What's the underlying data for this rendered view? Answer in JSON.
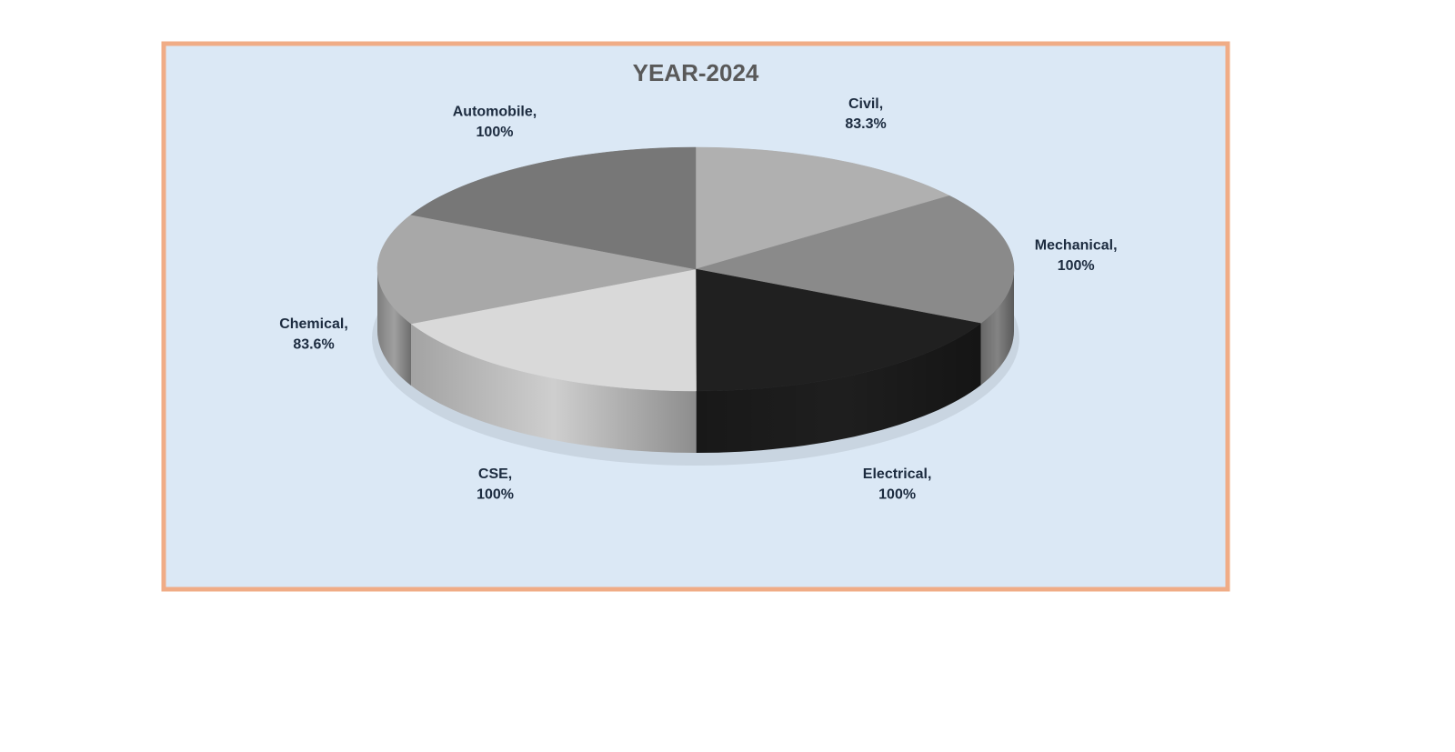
{
  "chart_data": {
    "type": "pie3d",
    "title": "YEAR-2024",
    "categories": [
      "Civil",
      "Mechanical",
      "Electrical",
      "CSE",
      "Chemical",
      "Automobile"
    ],
    "values": [
      83.3,
      100,
      100,
      100,
      83.6,
      100
    ],
    "value_labels": [
      "83.3%",
      "100%",
      "100%",
      "100%",
      "83.6%",
      "100%"
    ],
    "label_separator": ",",
    "colors": [
      "#b0b0b0",
      "#8a8a8a",
      "#202020",
      "#d9d9d9",
      "#a8a8a8",
      "#777777"
    ]
  }
}
